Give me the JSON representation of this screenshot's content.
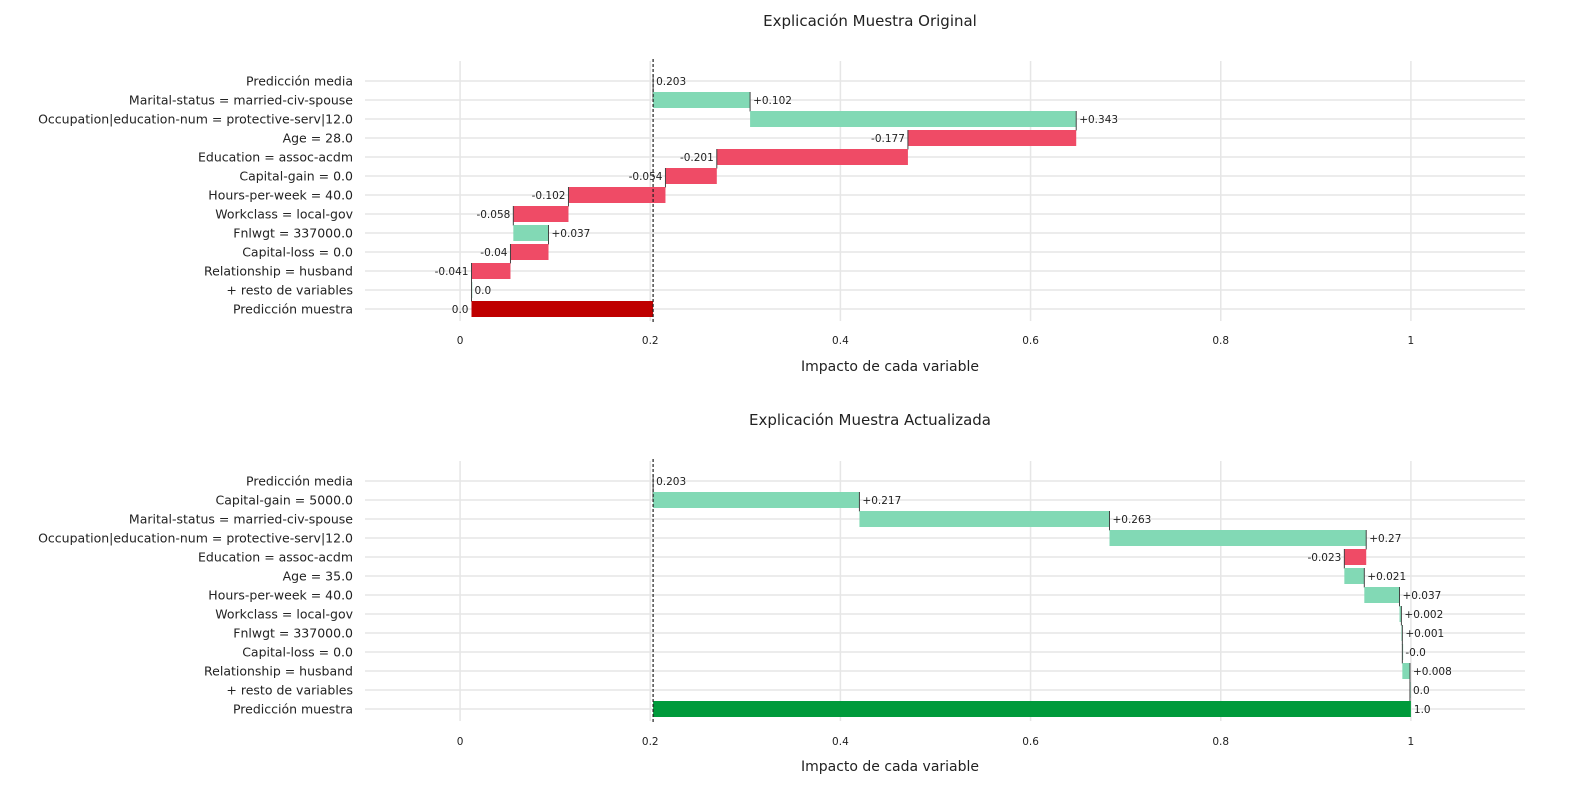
{
  "colors": {
    "positive": "#82d9b5",
    "negative": "#ef4b66",
    "final_original": "#bf0000",
    "final_updated": "#009a3b",
    "grid": "#e6e6e6"
  },
  "chart_data": [
    {
      "type": "waterfall",
      "title": "Explicación Muestra Original",
      "xlabel": "Impacto de cada variable",
      "xlim": [
        -0.1,
        1.12
      ],
      "xticks": [
        0,
        0.2,
        0.4,
        0.6,
        0.8,
        1
      ],
      "xtick_labels": [
        "0",
        "0.2",
        "0.4",
        "0.6",
        "0.8",
        "1"
      ],
      "reference_line": 0.203,
      "rows": [
        {
          "label": "Predicción media",
          "kind": "start",
          "value": 0.203,
          "text": "0.203"
        },
        {
          "label": "Marital-status = married-civ-spouse",
          "kind": "delta",
          "value": 0.102,
          "text": "+0.102"
        },
        {
          "label": "Occupation|education-num = protective-serv|12.0",
          "kind": "delta",
          "value": 0.343,
          "text": "+0.343"
        },
        {
          "label": "Age = 28.0",
          "kind": "delta",
          "value": -0.177,
          "text": "-0.177"
        },
        {
          "label": "Education = assoc-acdm",
          "kind": "delta",
          "value": -0.201,
          "text": "-0.201"
        },
        {
          "label": "Capital-gain = 0.0",
          "kind": "delta",
          "value": -0.054,
          "text": "-0.054"
        },
        {
          "label": "Hours-per-week = 40.0",
          "kind": "delta",
          "value": -0.102,
          "text": "-0.102"
        },
        {
          "label": "Workclass = local-gov",
          "kind": "delta",
          "value": -0.058,
          "text": "-0.058"
        },
        {
          "label": "Fnlwgt = 337000.0",
          "kind": "delta",
          "value": 0.037,
          "text": "+0.037"
        },
        {
          "label": "Capital-loss = 0.0",
          "kind": "delta",
          "value": -0.04,
          "text": "-0.04"
        },
        {
          "label": "Relationship = husband",
          "kind": "delta",
          "value": -0.041,
          "text": "-0.041"
        },
        {
          "label": "+ resto de variables",
          "kind": "delta",
          "value": 0.0,
          "text": "0.0"
        },
        {
          "label": "Predicción muestra",
          "kind": "final",
          "value": 0.012,
          "text": "0.0"
        }
      ]
    },
    {
      "type": "waterfall",
      "title": "Explicación Muestra Actualizada",
      "xlabel": "Impacto de cada variable",
      "xlim": [
        -0.1,
        1.12
      ],
      "xticks": [
        0,
        0.2,
        0.4,
        0.6,
        0.8,
        1
      ],
      "xtick_labels": [
        "0",
        "0.2",
        "0.4",
        "0.6",
        "0.8",
        "1"
      ],
      "reference_line": 0.203,
      "rows": [
        {
          "label": "Predicción media",
          "kind": "start",
          "value": 0.203,
          "text": "0.203"
        },
        {
          "label": "Capital-gain = 5000.0",
          "kind": "delta",
          "value": 0.217,
          "text": "+0.217"
        },
        {
          "label": "Marital-status = married-civ-spouse",
          "kind": "delta",
          "value": 0.263,
          "text": "+0.263"
        },
        {
          "label": "Occupation|education-num = protective-serv|12.0",
          "kind": "delta",
          "value": 0.27,
          "text": "+0.27"
        },
        {
          "label": "Education = assoc-acdm",
          "kind": "delta",
          "value": -0.023,
          "text": "-0.023"
        },
        {
          "label": "Age = 35.0",
          "kind": "delta",
          "value": 0.021,
          "text": "+0.021"
        },
        {
          "label": "Hours-per-week = 40.0",
          "kind": "delta",
          "value": 0.037,
          "text": "+0.037"
        },
        {
          "label": "Workclass = local-gov",
          "kind": "delta",
          "value": 0.002,
          "text": "+0.002"
        },
        {
          "label": "Fnlwgt = 337000.0",
          "kind": "delta",
          "value": 0.001,
          "text": "+0.001"
        },
        {
          "label": "Capital-loss = 0.0",
          "kind": "delta",
          "value": 0.0,
          "text": "-0.0"
        },
        {
          "label": "Relationship = husband",
          "kind": "delta",
          "value": 0.008,
          "text": "+0.008"
        },
        {
          "label": "+ resto de variables",
          "kind": "delta",
          "value": 0.0,
          "text": "0.0"
        },
        {
          "label": "Predicción muestra",
          "kind": "final",
          "value": 1.0,
          "text": "1.0"
        }
      ]
    }
  ]
}
